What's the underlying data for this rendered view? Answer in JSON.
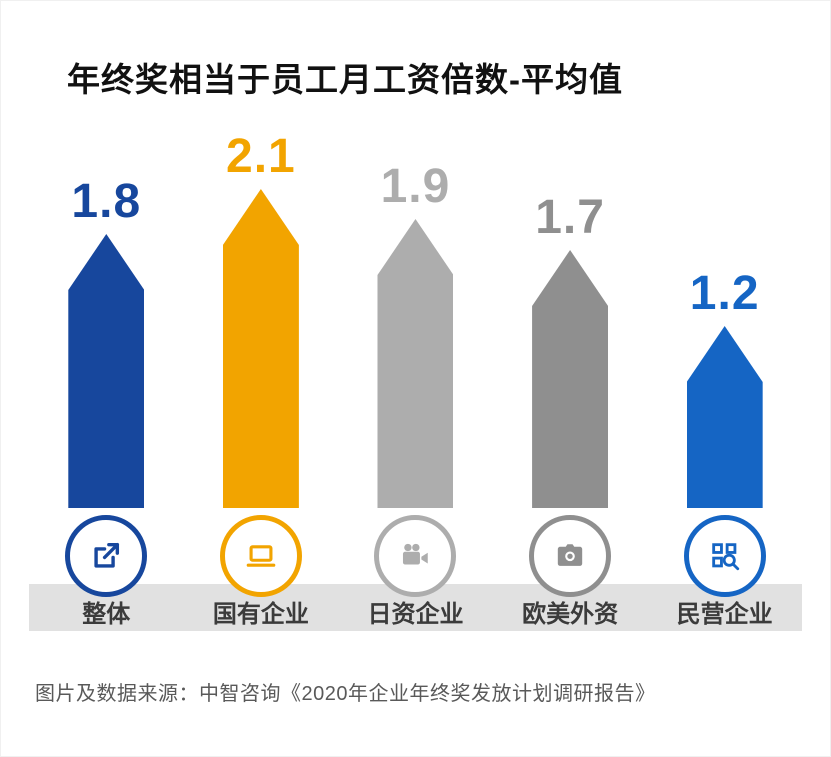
{
  "chart_data": {
    "type": "bar",
    "title": "年终奖相当于员工月工资倍数-平均值",
    "categories": [
      "整体",
      "国有企业",
      "日资企业",
      "欧美外资",
      "民营企业"
    ],
    "values": [
      1.8,
      2.1,
      1.9,
      1.7,
      1.2
    ],
    "value_labels": [
      "1.8",
      "2.1",
      "1.9",
      "1.7",
      "1.2"
    ],
    "colors": [
      "#17479d",
      "#f2a400",
      "#adadad",
      "#8f8f8f",
      "#1565c4"
    ],
    "icons": [
      "share-arrow-icon",
      "laptop-icon",
      "video-camera-icon",
      "camera-icon",
      "qr-search-icon"
    ],
    "ylim": [
      0,
      2.1
    ],
    "grid": false,
    "legend": "none",
    "bar_shape": "upward-arrow",
    "band_color": "#e1e1e1"
  },
  "source": {
    "caption": "图片及数据来源：中智咨询《2020年企业年终奖发放计划调研报告》"
  }
}
